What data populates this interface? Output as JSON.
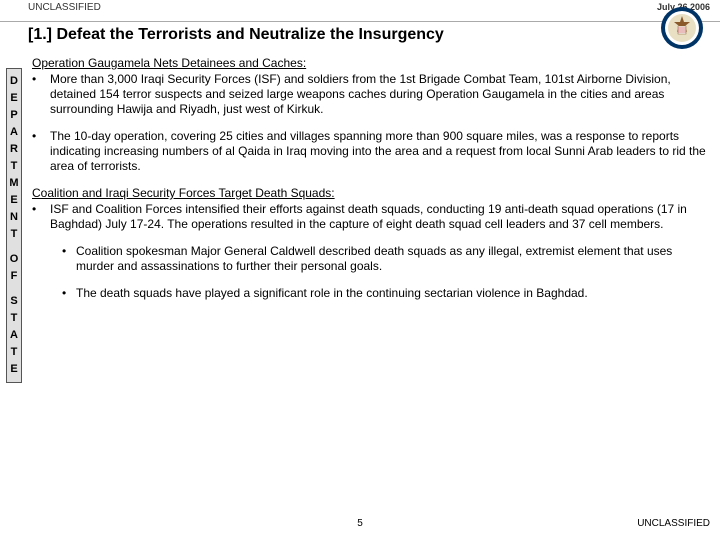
{
  "header": {
    "classification": "UNCLASSIFIED",
    "date": "July 26 2006"
  },
  "title": "[1.] Defeat the Terrorists and Neutralize the Insurgency",
  "sidebar_letters": [
    "D",
    "E",
    "P",
    "A",
    "R",
    "T",
    "M",
    "E",
    "N",
    "T",
    "",
    "O",
    "F",
    "",
    "S",
    "T",
    "A",
    "T",
    "E"
  ],
  "sections": [
    {
      "heading": "Operation Gaugamela Nets Detainees and Caches:",
      "bullets": [
        "More than 3,000 Iraqi Security Forces (ISF) and soldiers from the 1st Brigade Combat Team, 101st Airborne Division, detained 154 terror suspects and seized large weapons caches during Operation Gaugamela in the cities and areas surrounding Hawija and Riyadh, just west of Kirkuk.",
        "The 10-day operation, covering 25 cities and villages spanning more than 900 square miles, was a response to reports indicating increasing numbers of al Qaida in Iraq moving into the area and a request from local Sunni Arab leaders to rid the area of terrorists."
      ]
    },
    {
      "heading": "Coalition and Iraqi Security Forces Target Death Squads:",
      "bullets": [
        "ISF and Coalition Forces intensified their efforts against death squads, conducting 19 anti-death squad operations (17 in Baghdad) July 17-24.  The operations resulted in the capture of eight death squad cell leaders and 37 cell members."
      ],
      "sub_bullets": [
        "Coalition spokesman Major General Caldwell described death squads as any illegal, extremist element that uses murder and assassinations to further their personal goals.",
        "The death squads have played a significant role in the continuing sectarian violence in Baghdad."
      ]
    }
  ],
  "footer": {
    "page": "5",
    "classification": "UNCLASSIFIED"
  },
  "seal_colors": {
    "outer": "#003366",
    "inner": "#ffffff",
    "accent": "#8a5a2b"
  }
}
